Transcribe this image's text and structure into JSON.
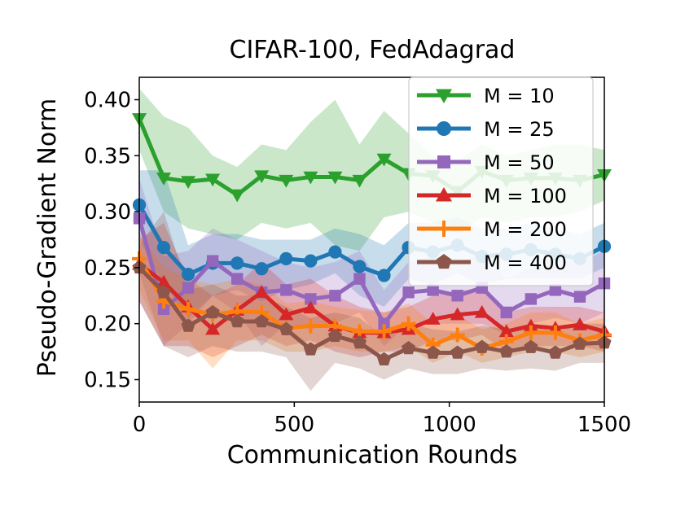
{
  "chart_data": {
    "type": "line",
    "title": "CIFAR-100, FedAdagrad",
    "xlabel": "Communication Rounds",
    "ylabel": "Pseudo-Gradient Norm",
    "xlim": [
      0,
      1500
    ],
    "ylim": [
      0.13,
      0.42
    ],
    "xticks": [
      0,
      500,
      1000,
      1500
    ],
    "yticks": [
      0.15,
      0.2,
      0.25,
      0.3,
      0.35,
      0.4
    ],
    "grid": false,
    "legend_position": "upper-right",
    "x": [
      0,
      78.9,
      157.9,
      236.8,
      315.8,
      394.7,
      473.7,
      552.6,
      631.6,
      710.5,
      789.5,
      868.4,
      947.4,
      1026.3,
      1105.3,
      1184.2,
      1263.2,
      1342.1,
      1421.1,
      1500
    ],
    "series": [
      {
        "name": "M = 10",
        "color": "#2ca02c",
        "marker": "triangle-down",
        "values": [
          0.383,
          0.33,
          0.327,
          0.329,
          0.315,
          0.332,
          0.328,
          0.331,
          0.331,
          0.328,
          0.347,
          0.334,
          0.332,
          0.318,
          0.336,
          0.328,
          0.33,
          0.33,
          0.328,
          0.333
        ],
        "lower": [
          0.355,
          0.3,
          0.285,
          0.28,
          0.275,
          0.29,
          0.285,
          0.29,
          0.27,
          0.265,
          0.295,
          0.3,
          0.29,
          0.28,
          0.295,
          0.29,
          0.295,
          0.295,
          0.3,
          0.31
        ],
        "upper": [
          0.41,
          0.385,
          0.375,
          0.35,
          0.34,
          0.36,
          0.355,
          0.38,
          0.4,
          0.36,
          0.39,
          0.37,
          0.35,
          0.345,
          0.36,
          0.35,
          0.355,
          0.36,
          0.36,
          0.355
        ]
      },
      {
        "name": "M = 25",
        "color": "#1f77b4",
        "marker": "circle",
        "values": [
          0.306,
          0.268,
          0.244,
          0.254,
          0.254,
          0.249,
          0.258,
          0.256,
          0.264,
          0.251,
          0.243,
          0.268,
          0.264,
          0.27,
          0.26,
          0.262,
          0.266,
          0.262,
          0.258,
          0.269
        ],
        "lower": [
          0.275,
          0.235,
          0.205,
          0.225,
          0.23,
          0.22,
          0.23,
          0.235,
          0.245,
          0.225,
          0.215,
          0.24,
          0.235,
          0.245,
          0.235,
          0.24,
          0.24,
          0.24,
          0.24,
          0.25
        ],
        "upper": [
          0.337,
          0.337,
          0.27,
          0.28,
          0.28,
          0.275,
          0.275,
          0.275,
          0.285,
          0.28,
          0.27,
          0.29,
          0.29,
          0.295,
          0.285,
          0.285,
          0.29,
          0.285,
          0.28,
          0.29
        ]
      },
      {
        "name": "M = 50",
        "color": "#9467bd",
        "marker": "square",
        "values": [
          0.294,
          0.213,
          0.232,
          0.256,
          0.24,
          0.228,
          0.23,
          0.222,
          0.225,
          0.24,
          0.2,
          0.228,
          0.23,
          0.225,
          0.232,
          0.21,
          0.222,
          0.23,
          0.224,
          0.236
        ],
        "lower": [
          0.245,
          0.18,
          0.2,
          0.225,
          0.21,
          0.18,
          0.2,
          0.195,
          0.2,
          0.21,
          0.18,
          0.2,
          0.2,
          0.2,
          0.2,
          0.19,
          0.2,
          0.205,
          0.2,
          0.21
        ],
        "upper": [
          0.33,
          0.26,
          0.265,
          0.285,
          0.275,
          0.265,
          0.255,
          0.25,
          0.255,
          0.265,
          0.23,
          0.255,
          0.26,
          0.255,
          0.262,
          0.24,
          0.25,
          0.258,
          0.255,
          0.265
        ]
      },
      {
        "name": "M = 100",
        "color": "#d62728",
        "marker": "triangle-up",
        "values": [
          0.253,
          0.237,
          0.215,
          0.195,
          0.212,
          0.228,
          0.208,
          0.214,
          0.198,
          0.192,
          0.192,
          0.195,
          0.204,
          0.208,
          0.21,
          0.193,
          0.198,
          0.196,
          0.199,
          0.193
        ],
        "lower": [
          0.22,
          0.18,
          0.18,
          0.17,
          0.18,
          0.19,
          0.18,
          0.185,
          0.175,
          0.17,
          0.175,
          0.175,
          0.185,
          0.185,
          0.19,
          0.175,
          0.18,
          0.18,
          0.18,
          0.175
        ],
        "upper": [
          0.275,
          0.29,
          0.24,
          0.225,
          0.235,
          0.255,
          0.235,
          0.24,
          0.225,
          0.215,
          0.21,
          0.215,
          0.225,
          0.23,
          0.23,
          0.21,
          0.215,
          0.215,
          0.215,
          0.21
        ]
      },
      {
        "name": "M = 200",
        "color": "#ff7f0e",
        "marker": "plus",
        "values": [
          0.258,
          0.22,
          0.213,
          0.208,
          0.211,
          0.21,
          0.196,
          0.198,
          0.198,
          0.193,
          0.193,
          0.2,
          0.181,
          0.19,
          0.178,
          0.184,
          0.192,
          0.192,
          0.185,
          0.19
        ],
        "lower": [
          0.23,
          0.185,
          0.185,
          0.16,
          0.185,
          0.185,
          0.175,
          0.175,
          0.18,
          0.175,
          0.175,
          0.18,
          0.165,
          0.175,
          0.165,
          0.17,
          0.175,
          0.175,
          0.17,
          0.175
        ],
        "upper": [
          0.28,
          0.25,
          0.24,
          0.235,
          0.24,
          0.235,
          0.218,
          0.22,
          0.215,
          0.212,
          0.21,
          0.218,
          0.2,
          0.208,
          0.195,
          0.2,
          0.21,
          0.21,
          0.2,
          0.205
        ]
      },
      {
        "name": "M = 400",
        "color": "#8c564b",
        "marker": "pentagon",
        "values": [
          0.25,
          0.228,
          0.198,
          0.21,
          0.202,
          0.202,
          0.195,
          0.177,
          0.189,
          0.183,
          0.168,
          0.178,
          0.174,
          0.174,
          0.179,
          0.175,
          0.179,
          0.174,
          0.182,
          0.183
        ],
        "lower": [
          0.22,
          0.18,
          0.17,
          0.18,
          0.175,
          0.175,
          0.17,
          0.14,
          0.165,
          0.16,
          0.15,
          0.16,
          0.155,
          0.155,
          0.16,
          0.158,
          0.16,
          0.158,
          0.165,
          0.165
        ],
        "upper": [
          0.27,
          0.3,
          0.23,
          0.235,
          0.225,
          0.225,
          0.215,
          0.205,
          0.21,
          0.205,
          0.188,
          0.2,
          0.195,
          0.193,
          0.198,
          0.195,
          0.2,
          0.192,
          0.2,
          0.2
        ]
      }
    ]
  }
}
